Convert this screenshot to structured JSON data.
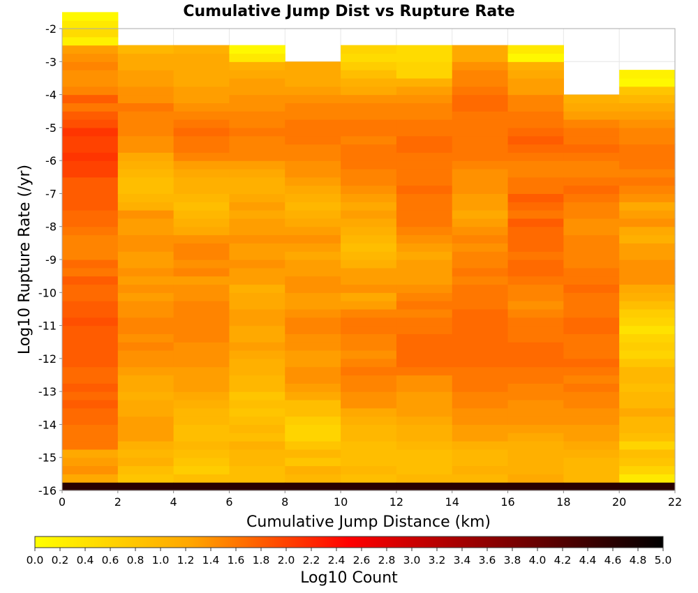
{
  "chart_data": {
    "type": "heatmap",
    "title": "Cumulative Jump Dist vs Rupture Rate",
    "xlabel": "Cumulative Jump Distance (km)",
    "ylabel": "Log10 Rupture Rate (/yr)",
    "xlim": [
      0,
      22
    ],
    "ylim": [
      -16,
      -2
    ],
    "x_ticks": [
      "0",
      "2",
      "4",
      "6",
      "8",
      "10",
      "12",
      "14",
      "16",
      "18",
      "20",
      "22"
    ],
    "y_ticks": [
      "-2",
      "-3",
      "-4",
      "-5",
      "-6",
      "-7",
      "-8",
      "-9",
      "-10",
      "-11",
      "-12",
      "-13",
      "-14",
      "-15",
      "-16"
    ],
    "x_bin_edges": [
      0,
      2,
      4,
      6,
      8,
      10,
      12,
      14,
      16,
      18,
      20,
      22
    ],
    "y_bin_width": 0.25,
    "y_bin_note_bottom": -16,
    "colorbar": {
      "label": "Log10 Count",
      "range": [
        0,
        5
      ],
      "ticks": [
        "0.0",
        "0.2",
        "0.4",
        "0.6",
        "0.8",
        "1.0",
        "1.2",
        "1.4",
        "1.6",
        "1.8",
        "2.0",
        "2.2",
        "2.4",
        "2.6",
        "2.8",
        "3.0",
        "3.2",
        "3.4",
        "3.6",
        "3.8",
        "4.0",
        "4.2",
        "4.4",
        "4.6",
        "4.8",
        "5.0"
      ],
      "colors": [
        "#ffff00",
        "#ffa500",
        "#ff0000",
        "#800000",
        "#000000"
      ]
    },
    "columns": [
      {
        "x_range": [
          0,
          2
        ],
        "values": [
          4.6,
          1.2,
          1.4,
          1.3,
          1.2,
          1.6,
          1.6,
          1.6,
          1.7,
          1.7,
          1.8,
          1.7,
          1.8,
          1.7,
          1.7,
          1.8,
          1.8,
          1.8,
          1.8,
          1.8,
          1.9,
          1.8,
          1.8,
          1.7,
          1.7,
          1.8,
          1.6,
          1.7,
          1.5,
          1.5,
          1.5,
          1.6,
          1.7,
          1.7,
          1.8,
          1.8,
          1.8,
          1.8,
          2.0,
          2.0,
          2.1,
          2.0,
          2.0,
          2.1,
          1.9,
          1.8,
          1.6,
          1.8,
          1.5,
          1.4,
          1.4,
          1.5,
          1.4,
          1.3,
          0.2,
          0.5,
          0.3,
          0.1
        ]
      },
      {
        "x_range": [
          2,
          4
        ],
        "values": [
          4.6,
          0.8,
          0.9,
          1.1,
          1.0,
          1.1,
          1.3,
          1.3,
          1.3,
          1.2,
          1.2,
          1.1,
          1.2,
          1.2,
          1.3,
          1.4,
          1.4,
          1.5,
          1.4,
          1.5,
          1.5,
          1.4,
          1.4,
          1.3,
          1.4,
          1.3,
          1.4,
          1.3,
          1.3,
          1.4,
          1.4,
          1.3,
          1.3,
          1.4,
          1.1,
          1.0,
          0.9,
          0.9,
          1.0,
          1.1,
          1.2,
          1.4,
          1.4,
          1.5,
          1.5,
          1.5,
          1.6,
          1.4,
          1.4,
          1.3,
          1.3,
          1.2,
          1.2,
          1.0
        ]
      },
      {
        "x_range": [
          4,
          6
        ],
        "values": [
          4.6,
          0.9,
          0.7,
          0.8,
          0.9,
          1.0,
          0.9,
          0.9,
          1.0,
          1.0,
          1.1,
          1.2,
          1.3,
          1.3,
          1.3,
          1.4,
          1.4,
          1.4,
          1.5,
          1.5,
          1.5,
          1.5,
          1.5,
          1.4,
          1.4,
          1.3,
          1.5,
          1.4,
          1.5,
          1.5,
          1.4,
          1.2,
          1.1,
          1.0,
          0.9,
          1.0,
          1.1,
          1.1,
          1.2,
          1.3,
          1.5,
          1.6,
          1.6,
          1.7,
          1.6,
          1.5,
          1.4,
          1.3,
          1.3,
          1.2,
          1.2,
          1.2,
          1.2,
          1.1
        ]
      },
      {
        "x_range": [
          6,
          8
        ],
        "values": [
          4.6,
          0.9,
          0.9,
          1.0,
          1.0,
          1.1,
          0.9,
          1.0,
          0.9,
          0.8,
          0.9,
          0.8,
          1.0,
          1.0,
          1.1,
          1.1,
          1.2,
          1.3,
          1.2,
          1.2,
          1.3,
          1.3,
          1.2,
          1.2,
          1.1,
          1.3,
          1.3,
          1.4,
          1.3,
          1.3,
          1.4,
          1.3,
          1.3,
          1.2,
          1.3,
          1.2,
          1.1,
          1.1,
          1.2,
          1.3,
          1.5,
          1.5,
          1.5,
          1.6,
          1.5,
          1.5,
          1.4,
          1.4,
          1.3,
          1.3,
          1.2,
          1.1,
          0.3,
          0.1
        ]
      },
      {
        "x_range": [
          8,
          10
        ],
        "values": [
          4.6,
          1.0,
          1.1,
          0.8,
          1.0,
          0.8,
          0.6,
          0.6,
          0.7,
          0.9,
          0.9,
          1.2,
          1.3,
          1.4,
          1.4,
          1.3,
          1.3,
          1.4,
          1.4,
          1.5,
          1.5,
          1.4,
          1.3,
          1.3,
          1.4,
          1.4,
          1.3,
          1.3,
          1.2,
          1.3,
          1.4,
          1.3,
          1.2,
          1.1,
          1.0,
          1.1,
          1.2,
          1.3,
          1.4,
          1.4,
          1.5,
          1.5,
          1.6,
          1.6,
          1.6,
          1.5,
          1.5,
          1.4,
          1.3,
          1.2,
          1.2,
          1.2
        ]
      },
      {
        "x_range": [
          10,
          12
        ],
        "values": [
          4.6,
          0.9,
          1.0,
          0.9,
          0.9,
          0.9,
          1.0,
          1.0,
          1.1,
          1.2,
          1.4,
          1.4,
          1.5,
          1.5,
          1.6,
          1.5,
          1.4,
          1.5,
          1.5,
          1.6,
          1.6,
          1.5,
          1.3,
          1.2,
          1.4,
          1.3,
          1.3,
          1.1,
          1.0,
          0.9,
          1.0,
          1.1,
          1.2,
          1.3,
          1.2,
          1.3,
          1.4,
          1.5,
          1.5,
          1.6,
          1.6,
          1.6,
          1.5,
          1.6,
          1.6,
          1.5,
          1.5,
          1.4,
          1.2,
          1.1,
          0.9,
          0.7,
          0.5,
          0.6
        ]
      },
      {
        "x_range": [
          12,
          14
        ],
        "values": [
          4.6,
          1.0,
          0.9,
          0.9,
          0.9,
          1.0,
          1.1,
          1.1,
          1.2,
          1.3,
          1.3,
          1.3,
          1.4,
          1.4,
          1.6,
          1.7,
          1.7,
          1.7,
          1.7,
          1.6,
          1.6,
          1.5,
          1.6,
          1.5,
          1.4,
          1.3,
          1.3,
          1.3,
          1.2,
          1.3,
          1.4,
          1.5,
          1.6,
          1.6,
          1.6,
          1.6,
          1.7,
          1.6,
          1.6,
          1.6,
          1.6,
          1.7,
          1.7,
          1.6,
          1.6,
          1.5,
          1.5,
          1.4,
          1.3,
          1.1,
          0.6,
          0.6,
          0.5,
          0.5
        ]
      },
      {
        "x_range": [
          14,
          16
        ],
        "values": [
          4.6,
          1.0,
          1.1,
          1.0,
          1.0,
          1.1,
          1.3,
          1.3,
          1.4,
          1.4,
          1.5,
          1.5,
          1.6,
          1.6,
          1.6,
          1.7,
          1.7,
          1.7,
          1.7,
          1.7,
          1.7,
          1.7,
          1.6,
          1.6,
          1.6,
          1.5,
          1.6,
          1.5,
          1.5,
          1.4,
          1.5,
          1.4,
          1.3,
          1.2,
          1.3,
          1.3,
          1.4,
          1.4,
          1.4,
          1.5,
          1.6,
          1.6,
          1.6,
          1.6,
          1.6,
          1.6,
          1.7,
          1.7,
          1.6,
          1.5,
          1.5,
          1.4,
          1.2,
          1.2
        ]
      },
      {
        "x_range": [
          16,
          18
        ],
        "values": [
          4.6,
          1.2,
          1.1,
          1.1,
          1.1,
          1.1,
          1.2,
          1.3,
          1.4,
          1.4,
          1.4,
          1.5,
          1.5,
          1.6,
          1.6,
          1.7,
          1.7,
          1.7,
          1.6,
          1.6,
          1.6,
          1.5,
          1.4,
          1.5,
          1.5,
          1.6,
          1.7,
          1.7,
          1.6,
          1.7,
          1.7,
          1.7,
          1.8,
          1.6,
          1.7,
          1.8,
          1.6,
          1.6,
          1.5,
          1.5,
          1.6,
          1.7,
          1.8,
          1.7,
          1.6,
          1.6,
          1.5,
          1.5,
          1.3,
          1.3,
          1.2,
          1.1,
          0.1,
          0.3
        ]
      },
      {
        "x_range": [
          18,
          20
        ],
        "values": [
          4.6,
          1.0,
          1.0,
          1.0,
          1.1,
          1.2,
          1.3,
          1.3,
          1.4,
          1.4,
          1.5,
          1.5,
          1.6,
          1.5,
          1.6,
          1.7,
          1.6,
          1.6,
          1.6,
          1.7,
          1.7,
          1.6,
          1.6,
          1.6,
          1.7,
          1.6,
          1.6,
          1.5,
          1.5,
          1.5,
          1.5,
          1.4,
          1.4,
          1.5,
          1.5,
          1.6,
          1.7,
          1.6,
          1.5,
          1.5,
          1.6,
          1.7,
          1.6,
          1.6,
          1.5,
          1.3,
          1.2,
          1.1
        ]
      },
      {
        "x_range": [
          20,
          22
        ],
        "values": [
          4.6,
          0.3,
          0.6,
          0.8,
          0.9,
          0.6,
          0.9,
          1.0,
          1.0,
          1.2,
          1.0,
          1.0,
          0.9,
          1.0,
          1.0,
          0.8,
          0.6,
          0.7,
          0.6,
          0.4,
          0.6,
          0.7,
          0.9,
          1.1,
          1.2,
          1.4,
          1.4,
          1.4,
          1.3,
          1.3,
          1.1,
          1.2,
          1.4,
          1.3,
          1.2,
          1.4,
          1.5,
          1.6,
          1.5,
          1.6,
          1.6,
          1.6,
          1.5,
          1.5,
          1.4,
          1.3,
          1.2,
          1.0,
          0.8,
          0.1,
          0.2
        ]
      }
    ]
  }
}
